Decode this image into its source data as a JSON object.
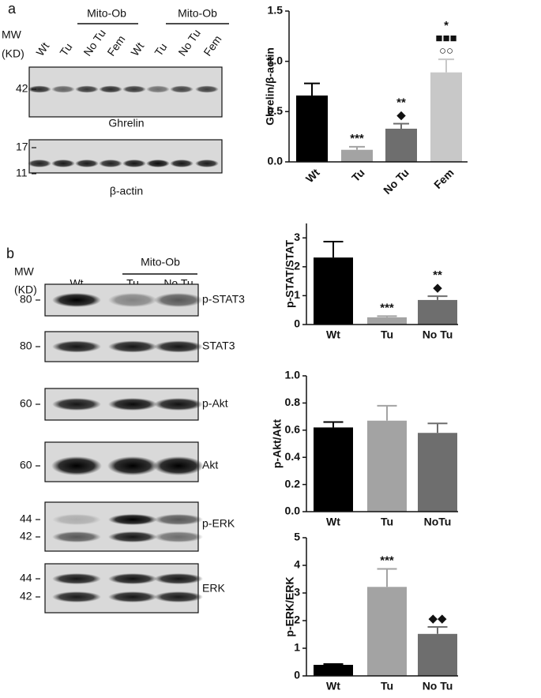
{
  "panel_a": {
    "label": "a",
    "mw_label": [
      "MW",
      "(KD)"
    ],
    "lanes": [
      "Wt",
      "Tu",
      "No Tu",
      "Fem",
      "Wt",
      "Tu",
      "No Tu",
      "Fem"
    ],
    "groups": [
      "Mito-Ob",
      "Mito-Ob"
    ],
    "blots": [
      {
        "name": "Ghrelin",
        "markers": [
          "42"
        ]
      },
      {
        "name": "β-actin",
        "markers": [
          "17",
          "11"
        ]
      }
    ]
  },
  "panel_b": {
    "label": "b",
    "mw_label": [
      "MW",
      "(KD)"
    ],
    "lanes": [
      "Wt",
      "Tu",
      "No Tu"
    ],
    "groups": [
      "Mito-Ob"
    ],
    "blots": [
      {
        "name": "p-STAT3",
        "markers": [
          "80"
        ]
      },
      {
        "name": "STAT3",
        "markers": [
          "80"
        ]
      },
      {
        "name": "p-Akt",
        "markers": [
          "60"
        ]
      },
      {
        "name": "Akt",
        "markers": [
          "60"
        ]
      },
      {
        "name": "p-ERK",
        "markers": [
          "44",
          "42"
        ]
      },
      {
        "name": "ERK",
        "markers": [
          "44",
          "42"
        ]
      }
    ]
  },
  "chart_data": [
    {
      "type": "bar",
      "ylabel": "Ghrelin/β-actin",
      "categories": [
        "Wt",
        "Tu",
        "No Tu",
        "Fem"
      ],
      "values": [
        0.66,
        0.12,
        0.33,
        0.89
      ],
      "errors": [
        0.12,
        0.03,
        0.05,
        0.13
      ],
      "colors": [
        "#000000",
        "#a3a3a3",
        "#6e6e6e",
        "#c8c8c8"
      ],
      "significance": [
        [],
        [
          "***"
        ],
        [
          "**",
          "◆"
        ],
        [
          "*",
          "■■■",
          "○○"
        ]
      ],
      "ylim": [
        0,
        1.5
      ],
      "yticks": [
        {
          "value": 0,
          "label": "0.0"
        },
        0.5,
        {
          "value": 1,
          "label": "1.0"
        },
        {
          "value": 1.5,
          "label": "1.5"
        }
      ]
    },
    {
      "type": "bar",
      "ylabel": "p-STAT/STAT",
      "categories": [
        "Wt",
        "Tu",
        "No Tu"
      ],
      "values": [
        2.32,
        0.25,
        0.85
      ],
      "errors": [
        0.55,
        0.04,
        0.13
      ],
      "colors": [
        "#000000",
        "#a3a3a3",
        "#6e6e6e"
      ],
      "significance": [
        [],
        [
          "***"
        ],
        [
          "**",
          "◆"
        ]
      ],
      "ylim": [
        0,
        3.5
      ],
      "yticks": [
        0,
        1,
        2,
        3
      ]
    },
    {
      "type": "bar",
      "ylabel": "p-Akt/Akt",
      "categories": [
        "Wt",
        "Tu",
        "NoTu"
      ],
      "values": [
        0.62,
        0.67,
        0.58
      ],
      "errors": [
        0.04,
        0.11,
        0.07
      ],
      "colors": [
        "#000000",
        "#a3a3a3",
        "#6e6e6e"
      ],
      "significance": [
        [],
        [],
        []
      ],
      "ylim": [
        0,
        1
      ],
      "yticks": [
        {
          "value": 0,
          "label": "0.0"
        },
        0.2,
        0.4,
        0.6,
        0.8,
        {
          "value": 1,
          "label": "1.0"
        }
      ]
    },
    {
      "type": "bar",
      "ylabel": "p-ERK/ERK",
      "categories": [
        "Wt",
        "Tu",
        "No Tu"
      ],
      "values": [
        0.4,
        3.22,
        1.52
      ],
      "errors": [
        0.03,
        0.65,
        0.25
      ],
      "colors": [
        "#000000",
        "#a3a3a3",
        "#6e6e6e"
      ],
      "significance": [
        [],
        [
          "***"
        ],
        [
          "◆◆"
        ]
      ],
      "ylim": [
        0,
        5
      ],
      "yticks": [
        0,
        1,
        2,
        3,
        4,
        5
      ]
    }
  ]
}
